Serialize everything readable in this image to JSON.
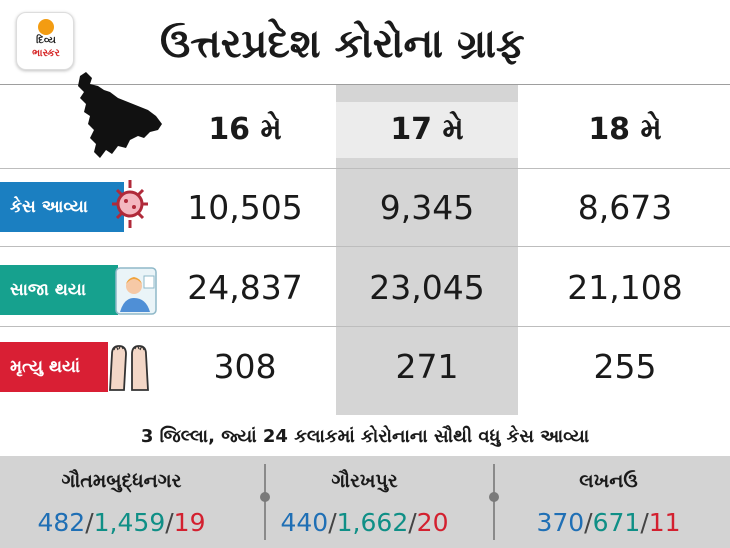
{
  "logo": {
    "line1": "દિવ્ય",
    "line2": "ભાસ્કર"
  },
  "title": "ઉત્તરપ્રદેશ કોરોના ગ્રાફ",
  "columns": [
    "16 મે",
    "17 મે",
    "18 મે"
  ],
  "rows": [
    {
      "label": "કેસ આવ્યા",
      "values": [
        "10,505",
        "9,345",
        "8,673"
      ],
      "icon": "virus-icon"
    },
    {
      "label": "સાજા થયા",
      "values": [
        "24,837",
        "23,045",
        "21,108"
      ],
      "icon": "patient-icon"
    },
    {
      "label": "મૃત્યુ થયાં",
      "values": [
        "308",
        "271",
        "255"
      ],
      "icon": "feet-icon"
    }
  ],
  "subtitle": "3 જિલ્લા, જ્યાં 24 કલાકમાં કોરોનાના સૌથી વધુ કેસ આવ્યા",
  "districts": [
    {
      "name": "ગૌતમબુદ્ધનગર",
      "a": "482",
      "b": "1,459",
      "c": "19"
    },
    {
      "name": "ગૌરખપુર",
      "a": "440",
      "b": "1,662",
      "c": "20"
    },
    {
      "name": "લખનઉ",
      "a": "370",
      "b": "671",
      "c": "11"
    }
  ],
  "colors": {
    "cases": "#1b7fc1",
    "recovered": "#16a18e",
    "deaths": "#d91f34",
    "highlight": "#d5d5d5"
  }
}
